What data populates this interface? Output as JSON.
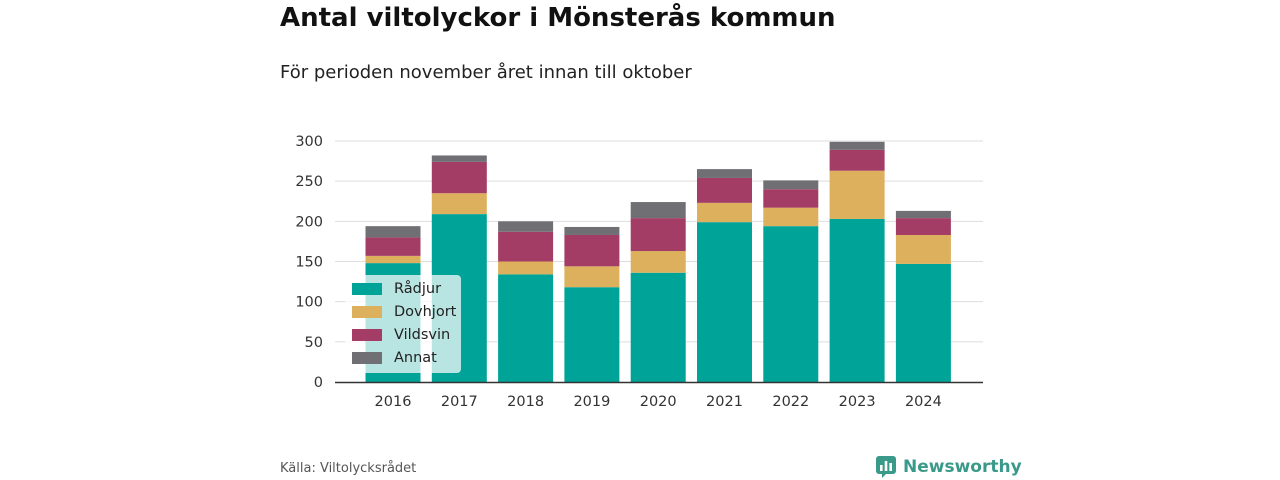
{
  "title": "Antal viltolyckor i Mönsterås kommun",
  "subtitle": "För perioden november året innan till oktober",
  "source": "Källa: Viltolycksrådet",
  "brand": {
    "name": "Newsworthy",
    "icon": "newsworthy-logo-icon",
    "color": "#3a9a8a"
  },
  "chart_data": {
    "type": "bar",
    "stacked": true,
    "categories": [
      "2016",
      "2017",
      "2018",
      "2019",
      "2020",
      "2021",
      "2022",
      "2023",
      "2024"
    ],
    "series": [
      {
        "name": "Rådjur",
        "color": "#00a398",
        "values": [
          148,
          209,
          134,
          118,
          136,
          199,
          194,
          203,
          147
        ]
      },
      {
        "name": "Dovhjort",
        "color": "#dcb05c",
        "values": [
          9,
          26,
          16,
          26,
          27,
          24,
          23,
          60,
          36
        ]
      },
      {
        "name": "Vildsvin",
        "color": "#a33d65",
        "values": [
          23,
          39,
          37,
          39,
          41,
          31,
          23,
          26,
          21
        ]
      },
      {
        "name": "Annat",
        "color": "#707074",
        "values": [
          14,
          8,
          13,
          10,
          20,
          11,
          11,
          10,
          9
        ]
      }
    ],
    "yticks": [
      0,
      50,
      100,
      150,
      200,
      250,
      300
    ],
    "ylim": [
      0,
      300
    ],
    "grid": true,
    "legend_position": "bottom-left",
    "xlabel": "",
    "ylabel": ""
  }
}
